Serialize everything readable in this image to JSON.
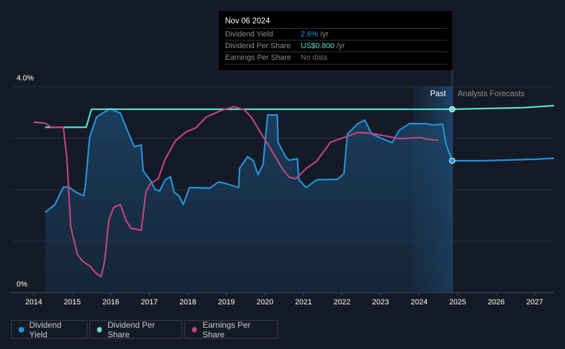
{
  "tooltip": {
    "date": "Nov 06 2024",
    "rows": [
      {
        "label": "Dividend Yield",
        "value": "2.6%",
        "unit": " /yr",
        "color": "#2394df"
      },
      {
        "label": "Dividend Per Share",
        "value": "US$0.800",
        "unit": " /yr",
        "color": "#5ce1d0"
      },
      {
        "label": "Earnings Per Share",
        "value": "No data",
        "unit": "",
        "color": "#6b7078"
      }
    ]
  },
  "regions": {
    "past": "Past",
    "forecast": "Analysts Forecasts"
  },
  "legend": [
    {
      "label": "Dividend Yield",
      "color": "#2394df"
    },
    {
      "label": "Dividend Per Share",
      "color": "#5ce1d0"
    },
    {
      "label": "Earnings Per Share",
      "color": "#c2457f"
    }
  ],
  "chart_data": {
    "type": "line",
    "xlabel": "",
    "ylabel": "",
    "y_tick_labels": [
      "4.0%",
      "0%"
    ],
    "ylim": [
      0,
      4.0
    ],
    "xlim": [
      2013.7,
      2027.5
    ],
    "x_ticks": [
      2014,
      2015,
      2016,
      2017,
      2018,
      2019,
      2020,
      2021,
      2022,
      2023,
      2024,
      2025,
      2026,
      2027
    ],
    "past_region": [
      2023.84,
      2024.86
    ],
    "tooltip_x": 2024.86,
    "grid": true,
    "legend_position": "bottom-left",
    "series": [
      {
        "name": "Dividend Yield",
        "color": "#2394df",
        "area": true,
        "x": [
          2014.3,
          2014.55,
          2014.77,
          2014.91,
          2015.09,
          2015.3,
          2015.34,
          2015.45,
          2015.63,
          2015.98,
          2016.25,
          2016.43,
          2016.61,
          2016.79,
          2016.84,
          2017.05,
          2017.14,
          2017.27,
          2017.41,
          2017.55,
          2017.64,
          2017.77,
          2017.88,
          2018.04,
          2018.57,
          2018.8,
          2019.02,
          2019.32,
          2019.34,
          2019.55,
          2019.7,
          2019.82,
          2019.95,
          2020.07,
          2020.32,
          2020.34,
          2020.54,
          2020.63,
          2020.84,
          2020.88,
          2021.07,
          2021.34,
          2021.88,
          2022.05,
          2022.14,
          2022.41,
          2022.59,
          2022.77,
          2023.04,
          2023.3,
          2023.48,
          2023.75,
          2024.2,
          2024.34,
          2024.61,
          2024.7,
          2024.86,
          2025.63,
          2027.05,
          2027.5
        ],
        "y": [
          1.56,
          1.71,
          2.05,
          2.05,
          1.95,
          1.88,
          2.08,
          3.01,
          3.41,
          3.57,
          3.48,
          3.15,
          2.83,
          2.87,
          2.37,
          2.15,
          2.01,
          1.97,
          2.19,
          2.25,
          1.95,
          1.88,
          1.71,
          2.04,
          2.03,
          2.15,
          2.11,
          2.04,
          2.41,
          2.64,
          2.56,
          2.29,
          2.48,
          3.45,
          3.45,
          2.92,
          2.63,
          2.57,
          2.6,
          2.19,
          2.04,
          2.19,
          2.2,
          2.31,
          3.08,
          3.28,
          3.35,
          3.08,
          2.99,
          2.91,
          3.15,
          3.28,
          3.28,
          3.25,
          3.27,
          2.88,
          2.56,
          2.56,
          2.59,
          2.61
        ]
      },
      {
        "name": "Dividend Per Share",
        "color": "#5ce1d0",
        "area": false,
        "x": [
          2014.3,
          2015.36,
          2015.5,
          2024.86,
          2026.7,
          2027.5
        ],
        "y": [
          3.21,
          3.21,
          3.56,
          3.56,
          3.59,
          3.63
        ]
      },
      {
        "name": "Earnings Per Share",
        "color": "#c2457f",
        "area": false,
        "x": [
          2014.0,
          2014.29,
          2014.46,
          2014.77,
          2014.86,
          2014.96,
          2015.13,
          2015.27,
          2015.45,
          2015.63,
          2015.75,
          2015.84,
          2015.95,
          2016.07,
          2016.25,
          2016.39,
          2016.52,
          2016.79,
          2016.91,
          2017.02,
          2017.23,
          2017.41,
          2017.68,
          2017.95,
          2018.21,
          2018.48,
          2018.84,
          2019.2,
          2019.46,
          2019.64,
          2019.91,
          2020.18,
          2020.45,
          2020.63,
          2020.8,
          2021.07,
          2021.34,
          2021.7,
          2022.05,
          2022.41,
          2022.77,
          2023.13,
          2023.48,
          2024.02,
          2024.29,
          2024.5
        ],
        "y": [
          3.31,
          3.29,
          3.21,
          3.21,
          2.61,
          1.28,
          0.75,
          0.61,
          0.52,
          0.37,
          0.31,
          0.61,
          1.41,
          1.65,
          1.71,
          1.41,
          1.25,
          1.21,
          1.95,
          2.11,
          2.21,
          2.59,
          2.95,
          3.12,
          3.2,
          3.41,
          3.53,
          3.61,
          3.55,
          3.41,
          3.08,
          2.75,
          2.41,
          2.24,
          2.21,
          2.41,
          2.55,
          2.92,
          3.01,
          3.11,
          3.09,
          3.04,
          2.99,
          3.01,
          2.97,
          2.96
        ]
      }
    ]
  }
}
